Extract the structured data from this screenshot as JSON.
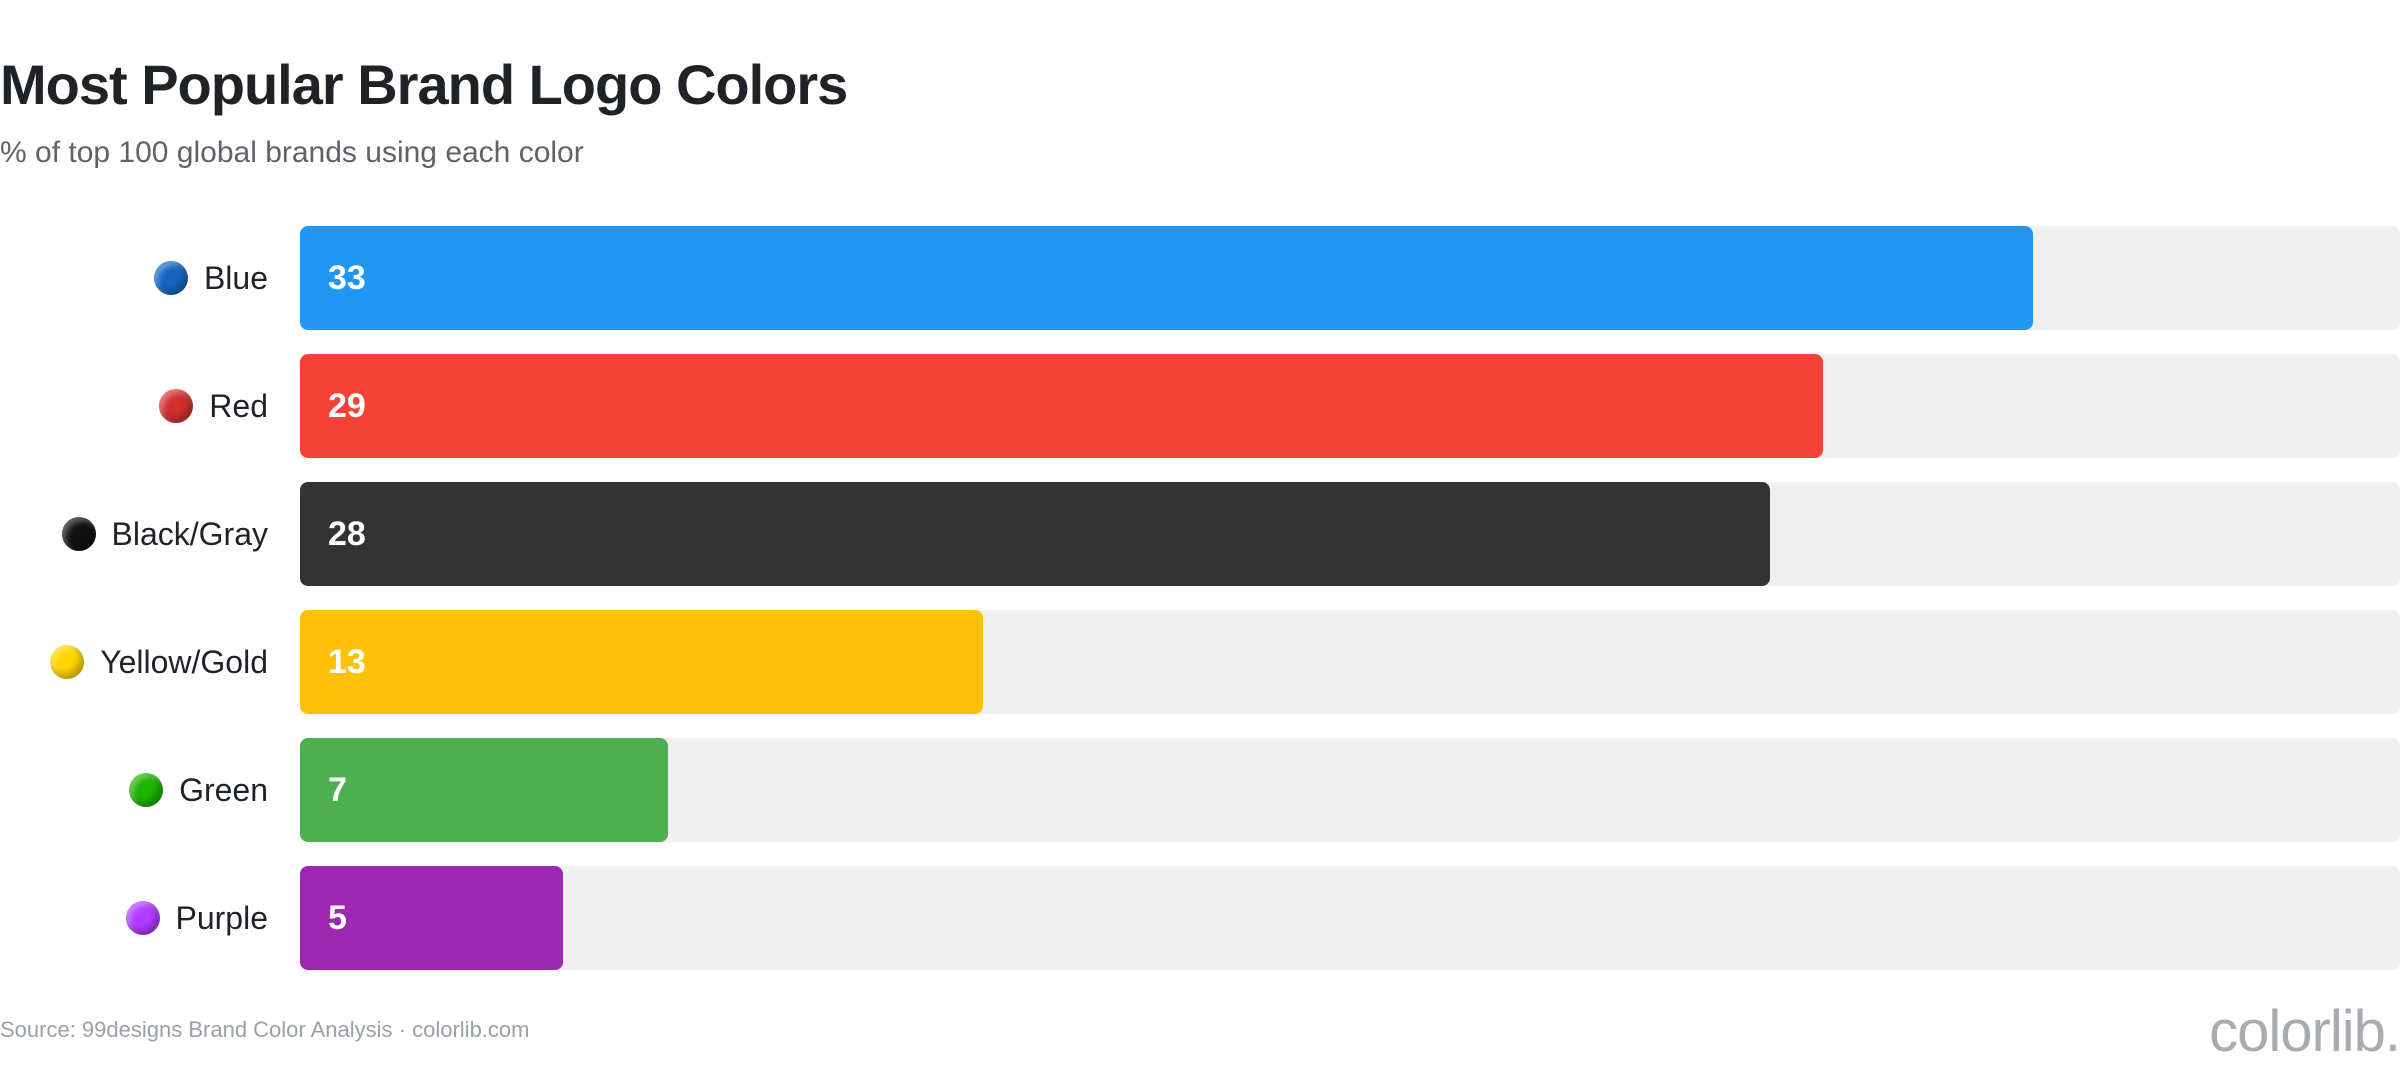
{
  "header": {
    "title": "Most Popular Brand Logo Colors",
    "subtitle": "% of top 100 global brands using each color"
  },
  "footer": {
    "source": "Source: 99designs Brand Color Analysis · colorlib.com",
    "brand": "colorlib."
  },
  "chart_data": {
    "type": "bar",
    "orientation": "horizontal",
    "title": "Most Popular Brand Logo Colors",
    "subtitle": "% of top 100 global brands using each color",
    "categories": [
      "Blue",
      "Red",
      "Black/Gray",
      "Yellow/Gold",
      "Green",
      "Purple"
    ],
    "values": [
      33,
      29,
      28,
      13,
      7,
      5
    ],
    "colors": [
      "#2196F3",
      "#F44336",
      "#333333",
      "#FFC107",
      "#4CAF50",
      "#9C27B0"
    ],
    "dot_icons": [
      "blue-circle-icon",
      "red-circle-icon",
      "black-circle-icon",
      "yellow-circle-icon",
      "green-circle-icon",
      "purple-circle-icon"
    ],
    "dot_colors": [
      "#1565C0",
      "#D32F2F",
      "#111111",
      "#FFD600",
      "#1DB300",
      "#B23BFF"
    ],
    "xlim": [
      0,
      40
    ],
    "track_color": "#F0F0F0",
    "grid": false,
    "legend": "none"
  }
}
